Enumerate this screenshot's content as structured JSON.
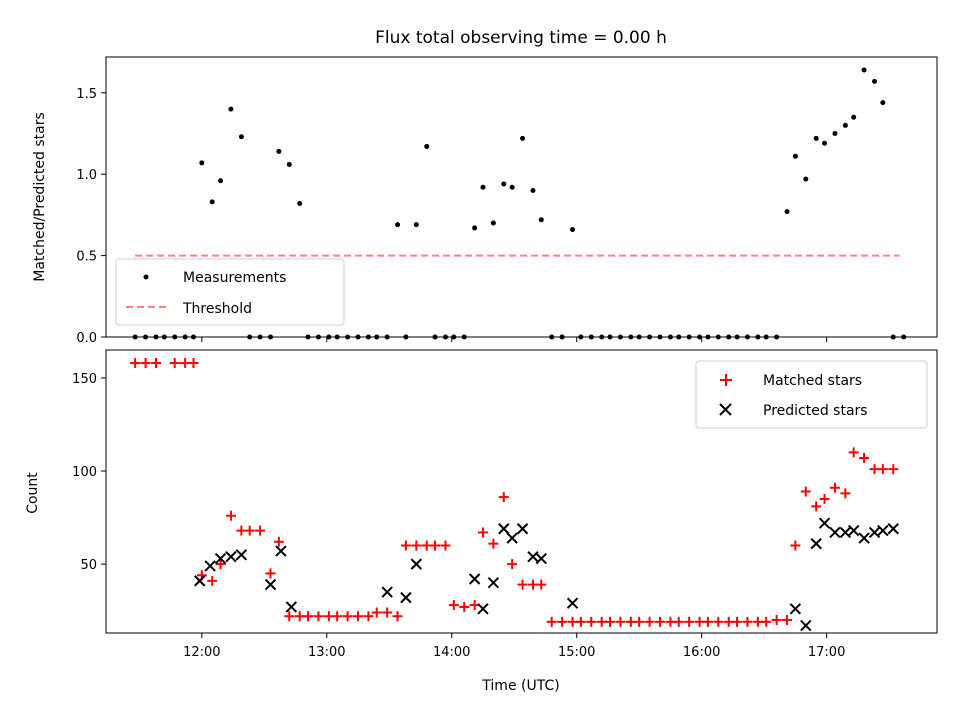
{
  "chart_data": [
    {
      "type": "scatter",
      "title": "Flux total observing time = 0.00 h",
      "xlabel": "",
      "ylabel": "Matched/Predicted stars",
      "ylim": [
        0,
        1.72
      ],
      "yticks": [
        "0.0",
        "0.5",
        "1.0",
        "1.5"
      ],
      "legend_position": "lower-left",
      "series": [
        {
          "name": "Measurements",
          "color": "#000000",
          "marker": "dot",
          "x": [
            "11:28",
            "11:33",
            "11:38",
            "11:42",
            "11:47",
            "11:52",
            "11:56",
            "12:00",
            "12:05",
            "12:09",
            "12:14",
            "12:19",
            "12:23",
            "12:28",
            "12:33",
            "12:37",
            "12:42",
            "12:47",
            "12:51",
            "12:56",
            "13:01",
            "13:05",
            "13:10",
            "13:15",
            "13:20",
            "13:24",
            "13:29",
            "13:34",
            "13:38",
            "13:43",
            "13:48",
            "13:52",
            "13:57",
            "14:01",
            "14:06",
            "14:11",
            "14:15",
            "14:20",
            "14:25",
            "14:29",
            "14:34",
            "14:39",
            "14:43",
            "14:48",
            "14:53",
            "14:58",
            "15:02",
            "15:07",
            "15:12",
            "15:16",
            "15:21",
            "15:26",
            "15:30",
            "15:35",
            "15:40",
            "15:45",
            "15:49",
            "15:54",
            "15:59",
            "16:03",
            "16:08",
            "16:13",
            "16:17",
            "16:22",
            "16:27",
            "16:31",
            "16:36",
            "16:41",
            "16:45",
            "16:50",
            "16:55",
            "16:59",
            "17:04",
            "17:09",
            "17:13",
            "17:18",
            "17:23",
            "17:27",
            "17:32",
            "17:37"
          ],
          "y": [
            0,
            0,
            0,
            0,
            0,
            0,
            0,
            1.07,
            0.83,
            0.96,
            1.4,
            1.23,
            0,
            0,
            0,
            1.14,
            1.06,
            0.82,
            0,
            0,
            0,
            0,
            0,
            0,
            0,
            0,
            0,
            0.69,
            0,
            0.69,
            1.17,
            0,
            0,
            0,
            0,
            0.67,
            0.92,
            0.7,
            0.94,
            0.92,
            1.22,
            0.9,
            0.72,
            0,
            0,
            0.66,
            0,
            0,
            0,
            0,
            0,
            0,
            0,
            0,
            0,
            0,
            0,
            0,
            0,
            0,
            0,
            0,
            0,
            0,
            0,
            0,
            0,
            0.77,
            1.11,
            0.97,
            1.22,
            1.19,
            1.25,
            1.3,
            1.35,
            1.64,
            1.57,
            1.44,
            0,
            0
          ]
        },
        {
          "name": "Threshold",
          "color": "#ff7f7f",
          "style": "dashed",
          "x": [
            "11:28",
            "17:35"
          ],
          "y": [
            0.5,
            0.5
          ]
        }
      ]
    },
    {
      "type": "scatter",
      "title": "",
      "xlabel": "Time (UTC)",
      "ylabel": "Count",
      "ylim": [
        13,
        165
      ],
      "yticks": [
        "50",
        "100",
        "150"
      ],
      "xticks": [
        "12:00",
        "13:00",
        "14:00",
        "15:00",
        "16:00",
        "17:00"
      ],
      "x_range": [
        "11:14",
        "17:53"
      ],
      "legend_position": "upper-right",
      "series": [
        {
          "name": "Matched stars",
          "color": "#ff0000",
          "marker": "plus",
          "x": [
            "11:28",
            "11:33",
            "11:38",
            "11:47",
            "11:52",
            "11:56",
            "12:00",
            "12:05",
            "12:09",
            "12:14",
            "12:19",
            "12:23",
            "12:28",
            "12:33",
            "12:37",
            "12:42",
            "12:47",
            "12:51",
            "12:56",
            "13:01",
            "13:05",
            "13:10",
            "13:15",
            "13:20",
            "13:24",
            "13:29",
            "13:34",
            "13:38",
            "13:43",
            "13:48",
            "13:52",
            "13:57",
            "14:01",
            "14:06",
            "14:11",
            "14:15",
            "14:20",
            "14:25",
            "14:29",
            "14:34",
            "14:39",
            "14:43",
            "14:48",
            "14:53",
            "14:58",
            "15:02",
            "15:07",
            "15:12",
            "15:16",
            "15:21",
            "15:26",
            "15:30",
            "15:35",
            "15:40",
            "15:45",
            "15:49",
            "15:54",
            "15:59",
            "16:03",
            "16:08",
            "16:13",
            "16:17",
            "16:22",
            "16:27",
            "16:31",
            "16:36",
            "16:41",
            "16:45",
            "16:50",
            "16:55",
            "16:59",
            "17:04",
            "17:09",
            "17:13",
            "17:18",
            "17:23",
            "17:27",
            "17:32"
          ],
          "y": [
            158,
            158,
            158,
            158,
            158,
            158,
            44,
            41,
            50,
            76,
            68,
            68,
            68,
            45,
            62,
            22,
            22,
            22,
            22,
            22,
            22,
            22,
            22,
            22,
            24,
            24,
            22,
            60,
            60,
            60,
            60,
            60,
            28,
            27,
            28,
            67,
            61,
            86,
            50,
            39,
            39,
            39,
            19,
            19,
            19,
            19,
            19,
            19,
            19,
            19,
            19,
            19,
            19,
            19,
            19,
            19,
            19,
            19,
            19,
            19,
            19,
            19,
            19,
            19,
            19,
            20,
            20,
            60,
            89,
            81,
            85,
            91,
            88,
            110,
            107,
            101,
            101,
            101
          ]
        },
        {
          "name": "Predicted stars",
          "color": "#000000",
          "marker": "x",
          "x": [
            "11:59",
            "12:04",
            "12:09",
            "12:14",
            "12:19",
            "12:33",
            "12:38",
            "12:43",
            "13:29",
            "13:38",
            "13:43",
            "14:11",
            "14:15",
            "14:20",
            "14:25",
            "14:29",
            "14:34",
            "14:39",
            "14:43",
            "14:58",
            "16:45",
            "16:50",
            "16:55",
            "16:59",
            "17:04",
            "17:09",
            "17:13",
            "17:18",
            "17:23",
            "17:27",
            "17:32"
          ],
          "y": [
            41,
            49,
            53,
            54,
            55,
            39,
            57,
            27,
            35,
            32,
            50,
            42,
            26,
            40,
            69,
            64,
            69,
            54,
            53,
            29,
            26,
            17,
            61,
            72,
            67,
            67,
            68,
            64,
            67,
            68,
            69
          ]
        }
      ]
    }
  ]
}
